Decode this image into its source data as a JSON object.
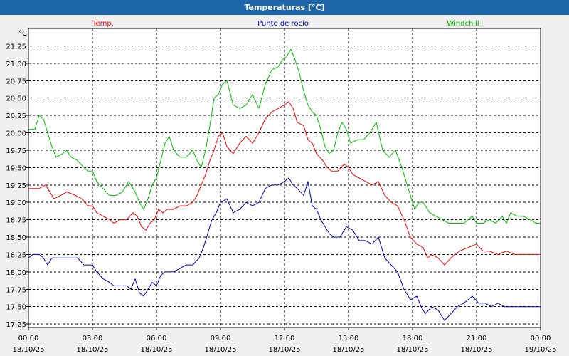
{
  "window": {
    "title": "Temperaturas [°C]"
  },
  "chart_data": {
    "type": "line",
    "title": "Temperaturas [°C]",
    "ylabel": "°C",
    "ylim": [
      17.2,
      21.5
    ],
    "yticks": [
      17.25,
      17.5,
      17.75,
      18.0,
      18.25,
      18.5,
      18.75,
      19.0,
      19.25,
      19.5,
      19.75,
      20.0,
      20.25,
      20.5,
      20.75,
      21.0,
      21.25
    ],
    "ytick_labels": [
      "17,25",
      "17,50",
      "17,75",
      "18,00",
      "18,25",
      "18,50",
      "18,75",
      "19,00",
      "19,25",
      "19,50",
      "19,75",
      "20,00",
      "20,25",
      "20,50",
      "20,75",
      "21,00",
      "21,25"
    ],
    "xlim": [
      0,
      24
    ],
    "xticks": [
      0,
      3,
      6,
      9,
      12,
      15,
      18,
      21,
      24
    ],
    "xtick_labels": [
      {
        "time": "00:00",
        "date": "18/10/25"
      },
      {
        "time": "03:00",
        "date": "18/10/25"
      },
      {
        "time": "06:00",
        "date": "18/10/25"
      },
      {
        "time": "09:00",
        "date": "18/10/25"
      },
      {
        "time": "12:00",
        "date": "18/10/25"
      },
      {
        "time": "15:00",
        "date": "18/10/25"
      },
      {
        "time": "18:00",
        "date": "18/10/25"
      },
      {
        "time": "21:00",
        "date": "18/10/25"
      },
      {
        "time": "00:00",
        "date": "19/10/25"
      }
    ],
    "grid": true,
    "legend_position": "top",
    "series": [
      {
        "name": "Temp.",
        "color": "#ff0000",
        "points": [
          [
            0,
            19.2
          ],
          [
            0.5,
            19.2
          ],
          [
            0.8,
            19.25
          ],
          [
            1,
            19.15
          ],
          [
            1.2,
            19.05
          ],
          [
            1.5,
            19.1
          ],
          [
            1.8,
            19.15
          ],
          [
            2.2,
            19.1
          ],
          [
            2.5,
            19.05
          ],
          [
            2.8,
            18.95
          ],
          [
            3,
            18.95
          ],
          [
            3.2,
            18.85
          ],
          [
            3.5,
            18.8
          ],
          [
            3.8,
            18.75
          ],
          [
            4,
            18.7
          ],
          [
            4.3,
            18.75
          ],
          [
            4.6,
            18.75
          ],
          [
            4.9,
            18.85
          ],
          [
            5.1,
            18.8
          ],
          [
            5.3,
            18.65
          ],
          [
            5.5,
            18.6
          ],
          [
            5.7,
            18.7
          ],
          [
            5.9,
            18.75
          ],
          [
            6.1,
            18.9
          ],
          [
            6.3,
            18.85
          ],
          [
            6.5,
            18.9
          ],
          [
            6.8,
            18.9
          ],
          [
            7.1,
            18.95
          ],
          [
            7.4,
            18.95
          ],
          [
            7.7,
            19.0
          ],
          [
            7.9,
            19.1
          ],
          [
            8.1,
            19.25
          ],
          [
            8.3,
            19.4
          ],
          [
            8.5,
            19.6
          ],
          [
            8.7,
            19.75
          ],
          [
            8.9,
            19.95
          ],
          [
            9.1,
            20.0
          ],
          [
            9.3,
            19.8
          ],
          [
            9.6,
            19.7
          ],
          [
            9.9,
            19.85
          ],
          [
            10.2,
            19.95
          ],
          [
            10.5,
            19.85
          ],
          [
            10.8,
            20.0
          ],
          [
            11.1,
            20.2
          ],
          [
            11.4,
            20.3
          ],
          [
            11.7,
            20.35
          ],
          [
            12.0,
            20.4
          ],
          [
            12.2,
            20.45
          ],
          [
            12.4,
            20.35
          ],
          [
            12.6,
            20.15
          ],
          [
            12.9,
            20.1
          ],
          [
            13.1,
            19.9
          ],
          [
            13.3,
            19.85
          ],
          [
            13.5,
            19.7
          ],
          [
            13.8,
            19.6
          ],
          [
            14.0,
            19.5
          ],
          [
            14.2,
            19.45
          ],
          [
            14.5,
            19.45
          ],
          [
            14.8,
            19.55
          ],
          [
            15.0,
            19.5
          ],
          [
            15.2,
            19.4
          ],
          [
            15.5,
            19.35
          ],
          [
            15.8,
            19.3
          ],
          [
            16.1,
            19.25
          ],
          [
            16.4,
            19.3
          ],
          [
            16.7,
            19.1
          ],
          [
            17.0,
            19.0
          ],
          [
            17.3,
            18.95
          ],
          [
            17.6,
            18.75
          ],
          [
            17.9,
            18.5
          ],
          [
            18.2,
            18.4
          ],
          [
            18.5,
            18.35
          ],
          [
            18.7,
            18.2
          ],
          [
            18.9,
            18.25
          ],
          [
            19.2,
            18.2
          ],
          [
            19.5,
            18.1
          ],
          [
            19.8,
            18.2
          ],
          [
            20.2,
            18.3
          ],
          [
            20.6,
            18.35
          ],
          [
            21.0,
            18.4
          ],
          [
            21.3,
            18.3
          ],
          [
            21.6,
            18.3
          ],
          [
            22.0,
            18.25
          ],
          [
            22.4,
            18.3
          ],
          [
            22.8,
            18.25
          ],
          [
            23.2,
            18.25
          ],
          [
            23.6,
            18.25
          ],
          [
            24.0,
            18.25
          ]
        ]
      },
      {
        "name": "Punto de rocio",
        "color": "#0000c0",
        "points": [
          [
            0,
            18.2
          ],
          [
            0.2,
            18.25
          ],
          [
            0.5,
            18.25
          ],
          [
            0.7,
            18.2
          ],
          [
            0.9,
            18.1
          ],
          [
            1.1,
            18.2
          ],
          [
            1.5,
            18.2
          ],
          [
            1.9,
            18.2
          ],
          [
            2.3,
            18.2
          ],
          [
            2.6,
            18.1
          ],
          [
            3.0,
            18.1
          ],
          [
            3.2,
            18.0
          ],
          [
            3.5,
            17.9
          ],
          [
            3.8,
            17.85
          ],
          [
            4.0,
            17.8
          ],
          [
            4.3,
            17.8
          ],
          [
            4.6,
            17.8
          ],
          [
            4.8,
            17.75
          ],
          [
            5.0,
            17.9
          ],
          [
            5.2,
            17.7
          ],
          [
            5.4,
            17.65
          ],
          [
            5.6,
            17.75
          ],
          [
            5.8,
            17.85
          ],
          [
            6.0,
            17.8
          ],
          [
            6.2,
            17.95
          ],
          [
            6.4,
            18.0
          ],
          [
            6.8,
            18.0
          ],
          [
            7.1,
            18.05
          ],
          [
            7.4,
            18.1
          ],
          [
            7.7,
            18.1
          ],
          [
            8.0,
            18.2
          ],
          [
            8.2,
            18.35
          ],
          [
            8.4,
            18.55
          ],
          [
            8.6,
            18.75
          ],
          [
            8.8,
            18.85
          ],
          [
            9.0,
            19.0
          ],
          [
            9.3,
            19.05
          ],
          [
            9.6,
            18.85
          ],
          [
            9.9,
            18.9
          ],
          [
            10.2,
            19.0
          ],
          [
            10.5,
            18.95
          ],
          [
            10.8,
            19.0
          ],
          [
            11.1,
            19.2
          ],
          [
            11.4,
            19.25
          ],
          [
            11.7,
            19.25
          ],
          [
            12.0,
            19.3
          ],
          [
            12.2,
            19.35
          ],
          [
            12.4,
            19.25
          ],
          [
            12.6,
            19.2
          ],
          [
            12.9,
            19.1
          ],
          [
            13.1,
            19.3
          ],
          [
            13.3,
            18.95
          ],
          [
            13.5,
            18.9
          ],
          [
            13.7,
            18.75
          ],
          [
            13.9,
            18.65
          ],
          [
            14.1,
            18.55
          ],
          [
            14.3,
            18.5
          ],
          [
            14.6,
            18.5
          ],
          [
            14.9,
            18.65
          ],
          [
            15.2,
            18.6
          ],
          [
            15.5,
            18.45
          ],
          [
            15.8,
            18.45
          ],
          [
            16.1,
            18.4
          ],
          [
            16.4,
            18.5
          ],
          [
            16.7,
            18.2
          ],
          [
            17.0,
            18.1
          ],
          [
            17.3,
            18.0
          ],
          [
            17.6,
            17.75
          ],
          [
            17.9,
            17.6
          ],
          [
            18.2,
            17.65
          ],
          [
            18.4,
            17.5
          ],
          [
            18.6,
            17.4
          ],
          [
            18.9,
            17.5
          ],
          [
            19.2,
            17.45
          ],
          [
            19.5,
            17.3
          ],
          [
            19.8,
            17.4
          ],
          [
            20.1,
            17.5
          ],
          [
            20.4,
            17.55
          ],
          [
            20.8,
            17.65
          ],
          [
            21.1,
            17.55
          ],
          [
            21.4,
            17.55
          ],
          [
            21.7,
            17.5
          ],
          [
            22.0,
            17.55
          ],
          [
            22.3,
            17.5
          ],
          [
            22.6,
            17.5
          ],
          [
            23.0,
            17.5
          ],
          [
            23.5,
            17.5
          ],
          [
            24.0,
            17.5
          ]
        ]
      },
      {
        "name": "Windchill",
        "color": "#00c000",
        "points": [
          [
            0,
            20.05
          ],
          [
            0.3,
            20.05
          ],
          [
            0.5,
            20.25
          ],
          [
            0.7,
            20.2
          ],
          [
            0.9,
            20.0
          ],
          [
            1.1,
            19.8
          ],
          [
            1.3,
            19.65
          ],
          [
            1.6,
            19.7
          ],
          [
            1.8,
            19.75
          ],
          [
            2.0,
            19.65
          ],
          [
            2.3,
            19.6
          ],
          [
            2.6,
            19.5
          ],
          [
            2.8,
            19.45
          ],
          [
            3.0,
            19.45
          ],
          [
            3.2,
            19.3
          ],
          [
            3.5,
            19.2
          ],
          [
            3.8,
            19.1
          ],
          [
            4.1,
            19.1
          ],
          [
            4.4,
            19.15
          ],
          [
            4.7,
            19.3
          ],
          [
            5.0,
            19.15
          ],
          [
            5.2,
            19.0
          ],
          [
            5.4,
            18.9
          ],
          [
            5.6,
            19.05
          ],
          [
            5.8,
            19.25
          ],
          [
            6.0,
            19.35
          ],
          [
            6.2,
            19.6
          ],
          [
            6.4,
            19.85
          ],
          [
            6.6,
            19.95
          ],
          [
            6.8,
            19.75
          ],
          [
            7.1,
            19.65
          ],
          [
            7.4,
            19.65
          ],
          [
            7.7,
            19.75
          ],
          [
            7.9,
            19.6
          ],
          [
            8.1,
            19.5
          ],
          [
            8.3,
            19.75
          ],
          [
            8.5,
            20.1
          ],
          [
            8.7,
            20.5
          ],
          [
            8.9,
            20.55
          ],
          [
            9.1,
            20.7
          ],
          [
            9.3,
            20.75
          ],
          [
            9.6,
            20.4
          ],
          [
            9.9,
            20.35
          ],
          [
            10.2,
            20.4
          ],
          [
            10.5,
            20.55
          ],
          [
            10.8,
            20.35
          ],
          [
            11.1,
            20.7
          ],
          [
            11.4,
            20.9
          ],
          [
            11.7,
            20.95
          ],
          [
            11.9,
            21.05
          ],
          [
            12.1,
            21.1
          ],
          [
            12.3,
            21.2
          ],
          [
            12.5,
            21.05
          ],
          [
            12.7,
            20.85
          ],
          [
            12.9,
            20.6
          ],
          [
            13.1,
            20.4
          ],
          [
            13.3,
            20.3
          ],
          [
            13.5,
            20.25
          ],
          [
            13.7,
            20.05
          ],
          [
            13.9,
            19.8
          ],
          [
            14.1,
            19.7
          ],
          [
            14.3,
            19.75
          ],
          [
            14.5,
            20.0
          ],
          [
            14.7,
            20.15
          ],
          [
            14.9,
            20.05
          ],
          [
            15.1,
            19.85
          ],
          [
            15.4,
            19.9
          ],
          [
            15.7,
            19.9
          ],
          [
            16.0,
            20.0
          ],
          [
            16.3,
            20.15
          ],
          [
            16.6,
            19.75
          ],
          [
            16.9,
            19.65
          ],
          [
            17.2,
            19.75
          ],
          [
            17.5,
            19.5
          ],
          [
            17.7,
            19.3
          ],
          [
            17.9,
            19.1
          ],
          [
            18.1,
            18.9
          ],
          [
            18.3,
            19.0
          ],
          [
            18.5,
            19.0
          ],
          [
            18.8,
            18.85
          ],
          [
            19.1,
            18.8
          ],
          [
            19.4,
            18.75
          ],
          [
            19.7,
            18.7
          ],
          [
            20.0,
            18.7
          ],
          [
            20.4,
            18.7
          ],
          [
            20.8,
            18.8
          ],
          [
            21.0,
            18.7
          ],
          [
            21.3,
            18.7
          ],
          [
            21.6,
            18.75
          ],
          [
            21.9,
            18.7
          ],
          [
            22.2,
            18.8
          ],
          [
            22.4,
            18.7
          ],
          [
            22.6,
            18.85
          ],
          [
            22.9,
            18.8
          ],
          [
            23.2,
            18.8
          ],
          [
            23.5,
            18.75
          ],
          [
            23.8,
            18.7
          ],
          [
            24.0,
            18.7
          ]
        ]
      }
    ]
  }
}
